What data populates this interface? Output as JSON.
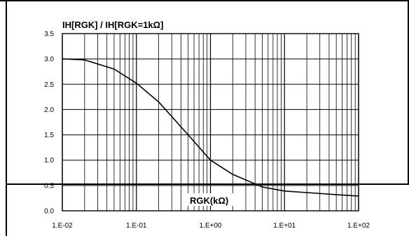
{
  "chart_data": {
    "type": "line",
    "title": "IH[RGK] / IH[RGK=1kΩ]",
    "xlabel": "RGK(kΩ)",
    "ylabel": "",
    "x_scale": "log",
    "xlim": [
      0.01,
      100
    ],
    "ylim": [
      0,
      3.5
    ],
    "xticks": [
      "1.E-02",
      "1.E-01",
      "1.E+00",
      "1.E+01",
      "1.E+02"
    ],
    "yticks": [
      "0.0",
      "0.5",
      "1.0",
      "1.5",
      "2.0",
      "2.5",
      "3.0",
      "3.5"
    ],
    "grid": true,
    "series": [
      {
        "x": [
          0.01,
          0.02,
          0.05,
          0.1,
          0.2,
          0.5,
          1,
          2,
          5,
          10,
          20,
          50,
          100
        ],
        "y": [
          3.0,
          2.98,
          2.8,
          2.52,
          2.15,
          1.5,
          1.0,
          0.72,
          0.47,
          0.39,
          0.36,
          0.32,
          0.29
        ]
      }
    ]
  }
}
